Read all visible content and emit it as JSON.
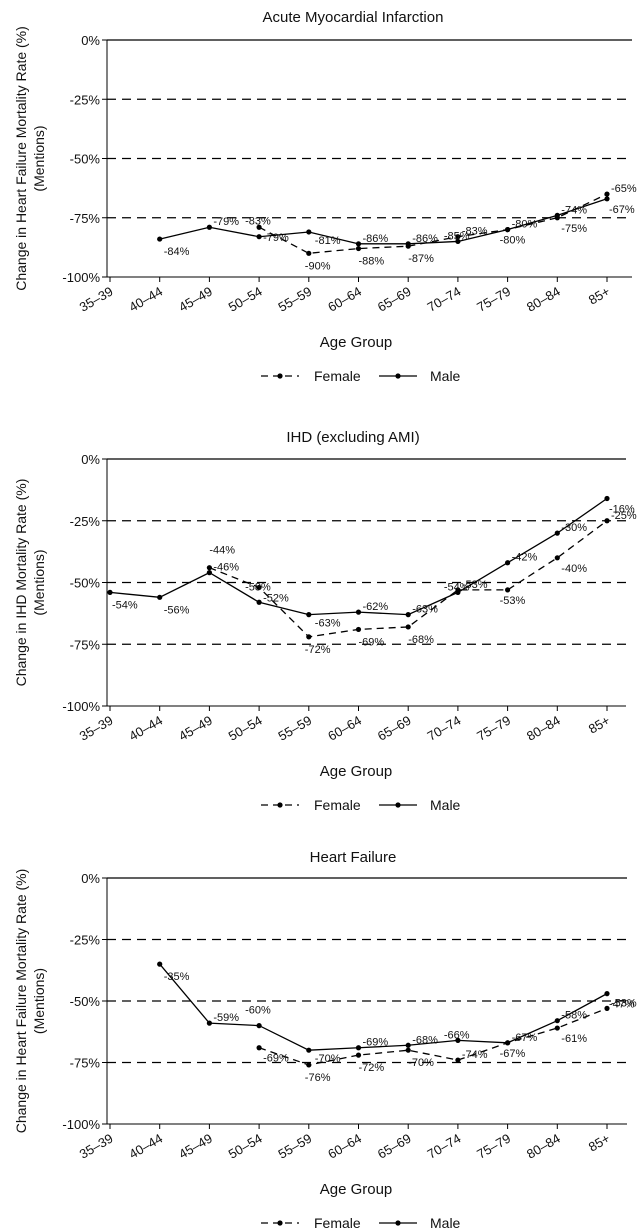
{
  "chart_data": [
    {
      "type": "line",
      "title": "Acute Myocardial Infarction",
      "ylabel_line1": "Change in Heart Failure Mortality Rate (%)",
      "ylabel_line2": "(Mentions)",
      "xlabel": "Age Group",
      "categories": [
        "35–39",
        "40–44",
        "45–49",
        "50–54",
        "55–59",
        "60–64",
        "65–69",
        "70–74",
        "75–79",
        "80–84",
        "85+"
      ],
      "yticks": [
        "0%",
        "-25%",
        "-50%",
        "-75%",
        "-100%"
      ],
      "ylim": [
        -100,
        0
      ],
      "reference_lines": [
        -25,
        -50,
        -75
      ],
      "legend": {
        "position": "bottom",
        "entries": [
          "Female",
          "Male"
        ]
      },
      "series": [
        {
          "name": "Female",
          "style": "dashed",
          "values": [
            null,
            null,
            null,
            -79,
            -90,
            -88,
            -87,
            -83,
            -80,
            -75,
            -65
          ],
          "labels": [
            null,
            null,
            null,
            "-79%",
            "-90%",
            "-88%",
            "-87%",
            "-83%",
            "-80%",
            "-75%",
            "-65%"
          ]
        },
        {
          "name": "Male",
          "style": "solid",
          "values": [
            null,
            -84,
            -79,
            -83,
            -81,
            -86,
            -86,
            -85,
            -80,
            -74,
            -67
          ],
          "labels": [
            null,
            "-84%",
            "-79%",
            "-83%",
            "-81%",
            "-86%",
            "-86%",
            "-85%",
            "-80%",
            "-74%",
            "-67%"
          ]
        }
      ]
    },
    {
      "type": "line",
      "title": "IHD (excluding AMI)",
      "ylabel_line1": "Change in IHD Mortality Rate (%)",
      "ylabel_line2": "(Mentions)",
      "xlabel": "Age Group",
      "categories": [
        "35–39",
        "40–44",
        "45–49",
        "50–54",
        "55–59",
        "60–64",
        "65–69",
        "70–74",
        "75–79",
        "80–84",
        "85+"
      ],
      "yticks": [
        "0%",
        "-25%",
        "-50%",
        "-75%",
        "-100%"
      ],
      "ylim": [
        -100,
        0
      ],
      "reference_lines": [
        -25,
        -50,
        -75
      ],
      "legend": {
        "position": "bottom",
        "entries": [
          "Female",
          "Male"
        ]
      },
      "series": [
        {
          "name": "Female",
          "style": "dashed",
          "values": [
            null,
            null,
            -44,
            -52,
            -72,
            -69,
            -68,
            -53,
            -53,
            -40,
            -25
          ],
          "labels": [
            null,
            null,
            "-44%",
            "-52%",
            "-72%",
            "-69%",
            "-68%",
            "-53%",
            "-53%",
            "-40%",
            "-25%"
          ]
        },
        {
          "name": "Male",
          "style": "solid",
          "values": [
            -54,
            -56,
            -46,
            -58,
            -63,
            -62,
            -63,
            -54,
            -42,
            -30,
            -16
          ],
          "labels": [
            "-54%",
            "-56%",
            "-46%",
            "-58%",
            "-63%",
            "-62%",
            "-63%",
            "-54%",
            "-42%",
            "-30%",
            "-16%"
          ]
        }
      ]
    },
    {
      "type": "line",
      "title": "Heart Failure",
      "ylabel_line1": "Change in Heart Failure Mortality Rate (%)",
      "ylabel_line2": "(Mentions)",
      "xlabel": "Age Group",
      "categories": [
        "35–39",
        "40–44",
        "45–49",
        "50–54",
        "55–59",
        "60–64",
        "65–69",
        "70–74",
        "75–79",
        "80–84",
        "85+"
      ],
      "yticks": [
        "0%",
        "-25%",
        "-50%",
        "-75%",
        "-100%"
      ],
      "ylim": [
        -100,
        0
      ],
      "reference_lines": [
        -25,
        -50,
        -75
      ],
      "legend": {
        "position": "bottom",
        "entries": [
          "Female",
          "Male"
        ]
      },
      "series": [
        {
          "name": "Female",
          "style": "dashed",
          "values": [
            null,
            null,
            null,
            -69,
            -76,
            -72,
            -70,
            -74,
            -67,
            -61,
            -53
          ],
          "labels": [
            null,
            null,
            null,
            "-69%",
            "-76%",
            "-72%",
            "-70%",
            "-74%",
            "-67%",
            "-61%",
            "-53%"
          ]
        },
        {
          "name": "Male",
          "style": "solid",
          "values": [
            null,
            -35,
            -59,
            -60,
            -70,
            -69,
            -68,
            -66,
            -67,
            -58,
            -47
          ],
          "labels": [
            null,
            "-35%",
            "-59%",
            "-60%",
            "-70%",
            "-69%",
            "-68%",
            "-66%",
            "-67%",
            "-58%",
            "-47%"
          ]
        }
      ]
    }
  ]
}
